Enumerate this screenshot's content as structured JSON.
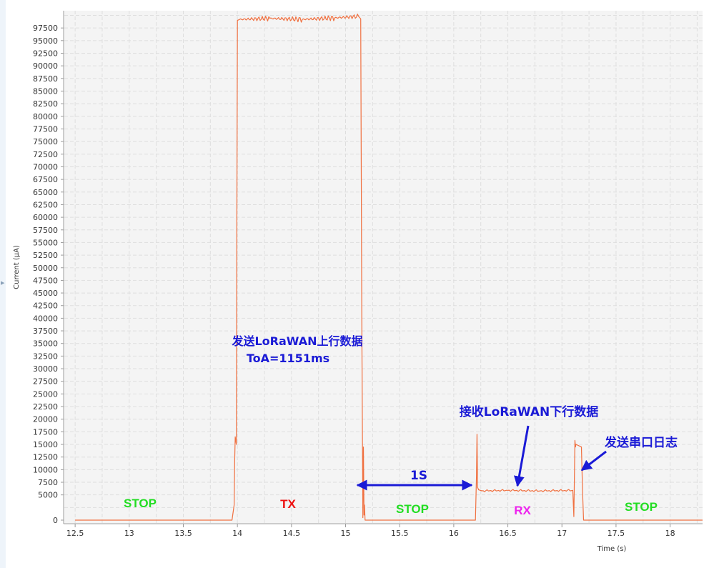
{
  "chart_data": {
    "type": "line",
    "title": "",
    "xlabel": "Time (s)",
    "ylabel": "Current (μA)",
    "xlim": [
      12.4,
      18.3
    ],
    "ylim": [
      0,
      100000
    ],
    "grid": true,
    "x_ticks": [
      "12.5",
      "13",
      "13.5",
      "14",
      "14.5",
      "15",
      "15.5",
      "16",
      "16.5",
      "17",
      "17.5",
      "18"
    ],
    "y_ticks": [
      "0",
      "5000",
      "7500",
      "10000",
      "12500",
      "15000",
      "17500",
      "20000",
      "22500",
      "25000",
      "27500",
      "30000",
      "32500",
      "35000",
      "37500",
      "40000",
      "42500",
      "45000",
      "47500",
      "50000",
      "52500",
      "55000",
      "57500",
      "60000",
      "62500",
      "65000",
      "67500",
      "70000",
      "72500",
      "75000",
      "77500",
      "80000",
      "82500",
      "85000",
      "87500",
      "90000",
      "92500",
      "95000",
      "97500"
    ],
    "series": [
      {
        "color": "#f07040",
        "x": [
          12.5,
          13.95,
          13.97,
          13.975,
          13.98,
          13.99,
          13.995,
          14.0,
          14.02,
          14.3,
          14.6,
          14.9,
          15.12,
          15.14,
          15.15,
          15.16,
          15.165,
          15.17,
          15.175,
          15.18,
          16.2,
          16.21,
          16.215,
          16.22,
          16.23,
          16.26,
          16.5,
          16.8,
          17.1,
          17.11,
          17.12,
          17.125,
          17.13,
          17.18,
          17.19,
          17.2,
          18.3
        ],
        "y": [
          0,
          0,
          3000,
          12000,
          16500,
          15000,
          60000,
          99000,
          99200,
          99400,
          99200,
          99500,
          99800,
          99300,
          40000,
          500,
          14500,
          1000,
          3000,
          0,
          0,
          9000,
          17000,
          6500,
          6000,
          5800,
          5900,
          5800,
          5900,
          700,
          15800,
          14500,
          15000,
          14500,
          6000,
          0,
          0
        ]
      }
    ],
    "annotations": {
      "tx_line1": "发送LoRaWAN上行数据",
      "tx_line2": "ToA=1151ms",
      "rx_label": "接收LoRaWAN下行数据",
      "uart_label": "发送串口日志",
      "gap_label": "1S"
    },
    "states": [
      {
        "label": "STOP",
        "color": "#22dd22"
      },
      {
        "label": "TX",
        "color": "#ee1111"
      },
      {
        "label": "STOP",
        "color": "#22dd22"
      },
      {
        "label": "RX",
        "color": "#ee22ee"
      },
      {
        "label": "STOP",
        "color": "#22dd22"
      }
    ]
  }
}
